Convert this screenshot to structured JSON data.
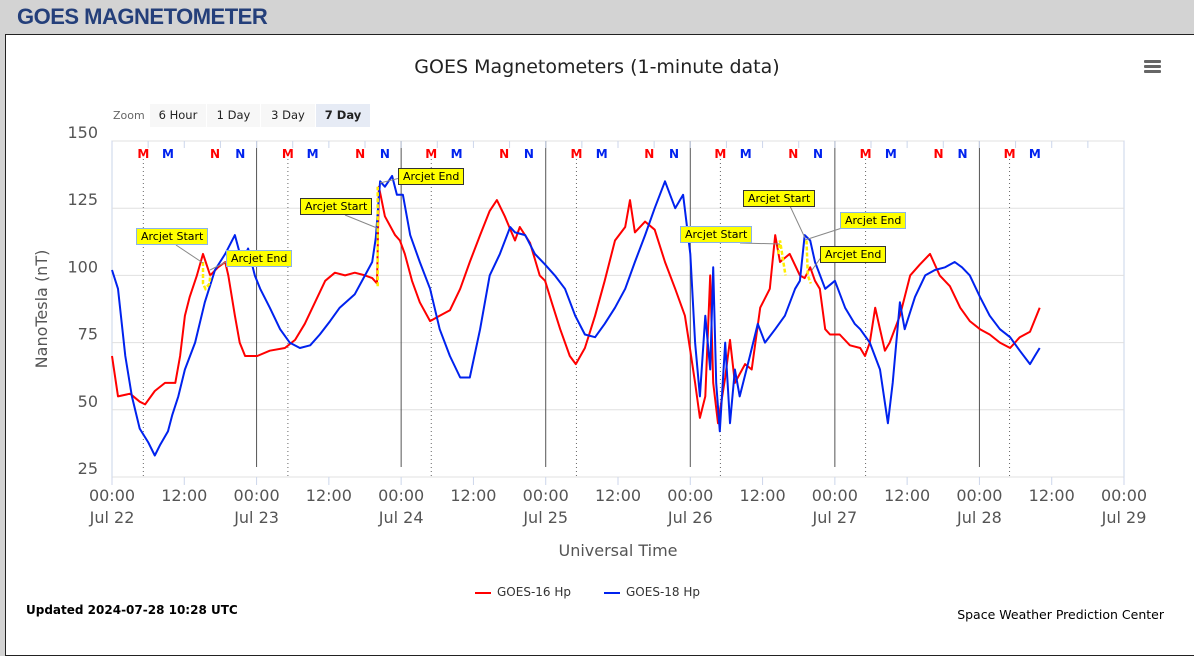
{
  "header": {
    "title": "GOES MAGNETOMETER"
  },
  "zoom": {
    "label": "Zoom",
    "buttons": [
      "6 Hour",
      "1 Day",
      "3 Day",
      "7 Day"
    ],
    "selected": "7 Day"
  },
  "footer": {
    "updated": "Updated 2024-07-28 10:28 UTC",
    "credit": "Space Weather Prediction Center"
  },
  "annotations": [
    {
      "label": "Arcjet Start",
      "style": "light"
    },
    {
      "label": "Arcjet End",
      "style": "light"
    },
    {
      "label": "Arcjet Start",
      "style": "dark"
    },
    {
      "label": "Arcjet End",
      "style": "dark"
    },
    {
      "label": "Arcjet Start",
      "style": "light"
    },
    {
      "label": "Arcjet End",
      "style": "light"
    },
    {
      "label": "Arcjet Start",
      "style": "dark"
    },
    {
      "label": "Arcjet End",
      "style": "dark"
    }
  ],
  "chart_data": {
    "type": "line",
    "title": "GOES Magnetometers (1-minute data)",
    "xlabel": "Universal Time",
    "ylabel": "NanoTesla (nT)",
    "x_units": "hours since 2024-07-22 00:00 UTC",
    "xlim": [
      0,
      168
    ],
    "ylim": [
      25,
      150
    ],
    "yticks": [
      25,
      50,
      75,
      100,
      125,
      150
    ],
    "xticks": [
      {
        "t": 0,
        "l1": "00:00",
        "l2": "Jul 22"
      },
      {
        "t": 12,
        "l1": "12:00",
        "l2": ""
      },
      {
        "t": 24,
        "l1": "00:00",
        "l2": "Jul 23"
      },
      {
        "t": 36,
        "l1": "12:00",
        "l2": ""
      },
      {
        "t": 48,
        "l1": "00:00",
        "l2": "Jul 24"
      },
      {
        "t": 60,
        "l1": "12:00",
        "l2": ""
      },
      {
        "t": 72,
        "l1": "00:00",
        "l2": "Jul 25"
      },
      {
        "t": 84,
        "l1": "12:00",
        "l2": ""
      },
      {
        "t": 96,
        "l1": "00:00",
        "l2": "Jul 26"
      },
      {
        "t": 108,
        "l1": "12:00",
        "l2": ""
      },
      {
        "t": 120,
        "l1": "00:00",
        "l2": "Jul 27"
      },
      {
        "t": 132,
        "l1": "12:00",
        "l2": ""
      },
      {
        "t": 144,
        "l1": "00:00",
        "l2": "Jul 28"
      },
      {
        "t": 156,
        "l1": "12:00",
        "l2": ""
      },
      {
        "t": 168,
        "l1": "00:00",
        "l2": "Jul 29"
      }
    ],
    "grid": true,
    "legend": "bottom-center",
    "series": [
      {
        "name": "GOES-16 Hp",
        "color": "#ff0000",
        "points": [
          [
            0,
            70
          ],
          [
            1,
            55
          ],
          [
            3,
            56
          ],
          [
            4.6,
            53
          ],
          [
            5.5,
            52
          ],
          [
            7.1,
            57
          ],
          [
            8.8,
            60
          ],
          [
            10.5,
            60
          ],
          [
            11.3,
            70
          ],
          [
            12.1,
            85
          ],
          [
            12.9,
            92
          ],
          [
            14.1,
            100
          ],
          [
            15.1,
            108
          ],
          [
            16.3,
            100
          ],
          [
            17.6,
            103
          ],
          [
            18.8,
            105
          ],
          [
            19.3,
            100
          ],
          [
            20.4,
            85
          ],
          [
            21.2,
            75
          ],
          [
            22.1,
            70
          ],
          [
            24.1,
            70
          ],
          [
            26.2,
            72
          ],
          [
            28.7,
            73
          ],
          [
            30.4,
            76
          ],
          [
            32,
            82
          ],
          [
            33.7,
            90
          ],
          [
            35.4,
            98
          ],
          [
            37,
            101
          ],
          [
            38.7,
            100
          ],
          [
            40.3,
            101
          ],
          [
            42,
            100
          ],
          [
            43.2,
            99
          ],
          [
            44,
            97
          ],
          [
            44.3,
            133
          ],
          [
            45.3,
            122
          ],
          [
            47,
            115
          ],
          [
            47.8,
            113
          ],
          [
            48.6,
            108
          ],
          [
            49.8,
            98
          ],
          [
            51.1,
            90
          ],
          [
            52.8,
            83
          ],
          [
            54.4,
            85
          ],
          [
            56.1,
            87
          ],
          [
            57.8,
            95
          ],
          [
            59.4,
            105
          ],
          [
            61.1,
            115
          ],
          [
            62.7,
            124
          ],
          [
            63.9,
            128
          ],
          [
            65.2,
            122
          ],
          [
            66.9,
            113
          ],
          [
            67.7,
            118
          ],
          [
            69.4,
            112
          ],
          [
            71,
            100
          ],
          [
            71.9,
            98
          ],
          [
            73,
            90
          ],
          [
            74.4,
            80
          ],
          [
            76,
            70
          ],
          [
            77,
            67
          ],
          [
            78.5,
            73
          ],
          [
            80.2,
            85
          ],
          [
            81.8,
            98
          ],
          [
            83.5,
            113
          ],
          [
            85.2,
            118
          ],
          [
            86,
            128
          ],
          [
            86.8,
            116
          ],
          [
            88.5,
            120
          ],
          [
            90.1,
            117
          ],
          [
            91.8,
            105
          ],
          [
            93.5,
            95
          ],
          [
            95.1,
            85
          ],
          [
            96,
            72
          ],
          [
            96.8,
            60
          ],
          [
            97.6,
            47
          ],
          [
            98.5,
            55
          ],
          [
            99.3,
            100
          ],
          [
            99.8,
            60
          ],
          [
            100.6,
            45
          ],
          [
            101.8,
            62
          ],
          [
            102.6,
            76
          ],
          [
            103.4,
            60
          ],
          [
            105.1,
            67
          ],
          [
            106.2,
            65
          ],
          [
            107.6,
            88
          ],
          [
            109.2,
            95
          ],
          [
            110.1,
            115
          ],
          [
            110.9,
            105
          ],
          [
            112.5,
            108
          ],
          [
            114.2,
            100
          ],
          [
            115,
            99
          ],
          [
            115.9,
            103
          ],
          [
            116.7,
            98
          ],
          [
            117.5,
            95
          ],
          [
            118.4,
            80
          ],
          [
            119.2,
            78
          ],
          [
            120.8,
            78
          ],
          [
            122.5,
            74
          ],
          [
            124.2,
            73
          ],
          [
            125,
            70
          ],
          [
            125.8,
            75
          ],
          [
            126.7,
            88
          ],
          [
            127.5,
            80
          ],
          [
            128.3,
            72
          ],
          [
            129.1,
            75
          ],
          [
            130.8,
            85
          ],
          [
            132.5,
            100
          ],
          [
            134.1,
            104
          ],
          [
            135.8,
            108
          ],
          [
            137.4,
            100
          ],
          [
            139.1,
            96
          ],
          [
            140.8,
            88
          ],
          [
            142.4,
            83
          ],
          [
            144.1,
            80
          ],
          [
            145.7,
            78
          ],
          [
            147.4,
            75
          ],
          [
            149.1,
            73
          ],
          [
            150.7,
            77
          ],
          [
            152.4,
            79
          ],
          [
            154,
            88
          ]
        ]
      },
      {
        "name": "GOES-18 Hp",
        "color": "#0022ee",
        "points": [
          [
            0,
            102
          ],
          [
            1,
            95
          ],
          [
            2.2,
            70
          ],
          [
            3.3,
            55
          ],
          [
            4.6,
            43
          ],
          [
            6,
            38
          ],
          [
            7.1,
            33
          ],
          [
            8,
            37
          ],
          [
            9.3,
            42
          ],
          [
            10,
            48
          ],
          [
            11,
            55
          ],
          [
            12.1,
            65
          ],
          [
            13.8,
            75
          ],
          [
            15.4,
            90
          ],
          [
            17.1,
            102
          ],
          [
            18.8,
            108
          ],
          [
            20.4,
            115
          ],
          [
            21.6,
            105
          ],
          [
            22.6,
            110
          ],
          [
            23.7,
            100
          ],
          [
            24.6,
            95
          ],
          [
            26.2,
            88
          ],
          [
            27.9,
            80
          ],
          [
            29.5,
            75
          ],
          [
            31.2,
            73
          ],
          [
            32.9,
            74
          ],
          [
            34.5,
            78
          ],
          [
            36.2,
            83
          ],
          [
            37.8,
            88
          ],
          [
            40.3,
            93
          ],
          [
            42,
            100
          ],
          [
            43.2,
            105
          ],
          [
            43.8,
            114
          ],
          [
            44.5,
            135
          ],
          [
            45.3,
            133
          ],
          [
            46.5,
            137
          ],
          [
            47.3,
            130
          ],
          [
            48.3,
            130
          ],
          [
            49.5,
            115
          ],
          [
            51.1,
            105
          ],
          [
            52.8,
            95
          ],
          [
            54.4,
            80
          ],
          [
            56.1,
            70
          ],
          [
            57.8,
            62
          ],
          [
            59.4,
            62
          ],
          [
            61.1,
            80
          ],
          [
            62.7,
            100
          ],
          [
            64.4,
            108
          ],
          [
            66.1,
            118
          ],
          [
            66.9,
            116
          ],
          [
            68.6,
            115
          ],
          [
            70.2,
            108
          ],
          [
            71.9,
            104
          ],
          [
            73.5,
            100
          ],
          [
            75.2,
            95
          ],
          [
            76.9,
            85
          ],
          [
            78.5,
            78
          ],
          [
            80.2,
            77
          ],
          [
            81.8,
            82
          ],
          [
            83.5,
            88
          ],
          [
            85.2,
            95
          ],
          [
            86.8,
            105
          ],
          [
            88.5,
            115
          ],
          [
            90.1,
            125
          ],
          [
            91.8,
            135
          ],
          [
            93.5,
            125
          ],
          [
            94.8,
            130
          ],
          [
            96,
            108
          ],
          [
            96.8,
            75
          ],
          [
            97.6,
            55
          ],
          [
            98.5,
            85
          ],
          [
            99.3,
            65
          ],
          [
            99.8,
            103
          ],
          [
            100.3,
            60
          ],
          [
            100.9,
            42
          ],
          [
            101.8,
            75
          ],
          [
            102.6,
            45
          ],
          [
            103.4,
            65
          ],
          [
            104.2,
            55
          ],
          [
            105.9,
            70
          ],
          [
            107.2,
            82
          ],
          [
            108.4,
            75
          ],
          [
            110.1,
            80
          ],
          [
            111.7,
            85
          ],
          [
            113.4,
            95
          ],
          [
            114.2,
            98
          ],
          [
            115,
            115
          ],
          [
            115.9,
            113
          ],
          [
            116.7,
            105
          ],
          [
            118.4,
            95
          ],
          [
            120,
            98
          ],
          [
            121.7,
            88
          ],
          [
            123.3,
            82
          ],
          [
            124.2,
            80
          ],
          [
            125.8,
            75
          ],
          [
            127.5,
            65
          ],
          [
            128.8,
            45
          ],
          [
            129.6,
            60
          ],
          [
            130.8,
            90
          ],
          [
            131.6,
            80
          ],
          [
            133.3,
            92
          ],
          [
            135,
            100
          ],
          [
            136.6,
            102
          ],
          [
            138.3,
            103
          ],
          [
            139.9,
            105
          ],
          [
            141.1,
            103
          ],
          [
            142.4,
            100
          ],
          [
            144.1,
            92
          ],
          [
            145.7,
            85
          ],
          [
            147.4,
            80
          ],
          [
            149.1,
            77
          ],
          [
            150.7,
            72
          ],
          [
            152.4,
            67
          ],
          [
            153.2,
            70
          ],
          [
            154,
            73
          ]
        ]
      }
    ],
    "top_markers": [
      {
        "label": "M",
        "color": "#ff0000",
        "t": [
          5.2,
          29.2,
          53,
          77.1,
          101,
          125.1,
          149
        ]
      },
      {
        "label": "M",
        "color": "#0022ee",
        "t": [
          9.3,
          33.3,
          57.2,
          81.3,
          105.2,
          129.3,
          153.2
        ]
      },
      {
        "label": "N",
        "color": "#ff0000",
        "t": [
          17.1,
          41.2,
          65.1,
          89.2,
          113.1,
          137.2
        ]
      },
      {
        "label": "N",
        "color": "#0022ee",
        "t": [
          21.3,
          45.3,
          69.2,
          93.3,
          117.2,
          141.2
        ]
      }
    ],
    "arcjet_segments": [
      [
        [
          15.1,
          105
        ],
        [
          15.1,
          97
        ],
        [
          15.5,
          95
        ],
        [
          16.2,
          97
        ],
        [
          16.3,
          100
        ]
      ],
      [
        [
          44.1,
          96
        ],
        [
          44.1,
          133
        ]
      ],
      [
        [
          110.6,
          108
        ],
        [
          110.9,
          113
        ],
        [
          111.8,
          100
        ]
      ],
      [
        [
          115.3,
          113
        ],
        [
          115.5,
          100
        ],
        [
          116,
          97
        ]
      ]
    ]
  }
}
